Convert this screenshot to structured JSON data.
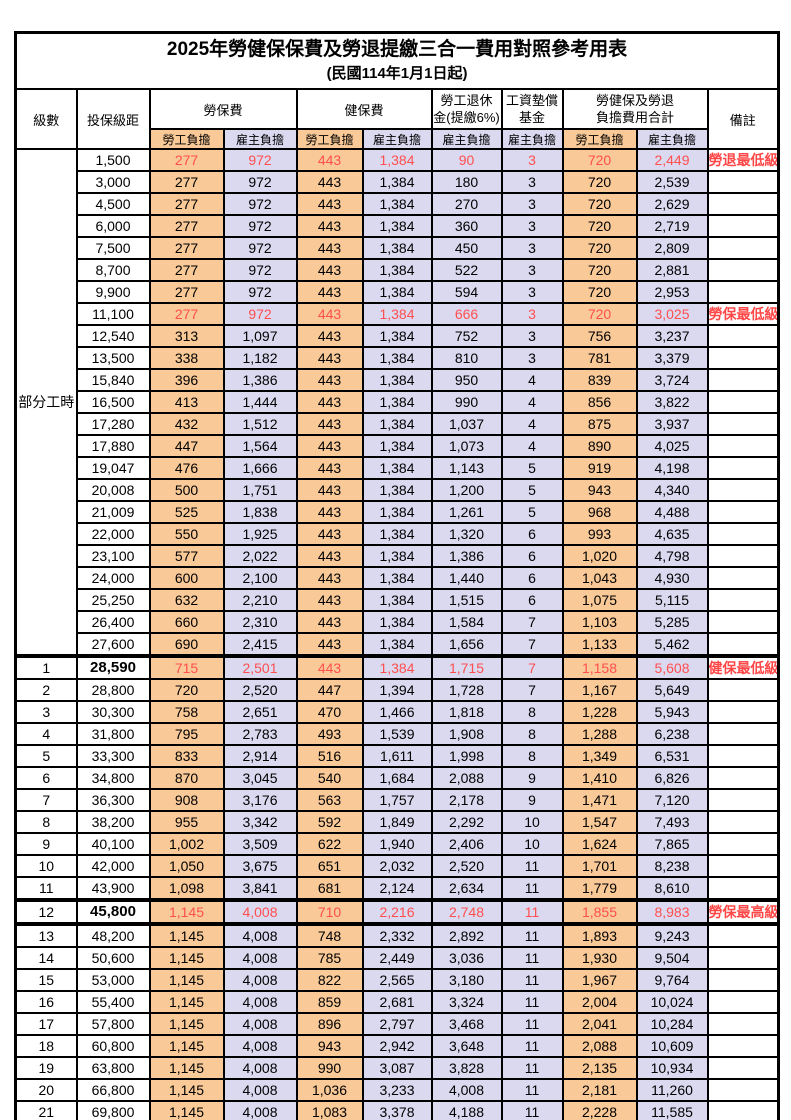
{
  "title": "2025年勞健保保費及勞退提繳三合一費用對照參考用表",
  "subtitle": "(民國114年1月1日起)",
  "colors": {
    "employee_col_bg": "#F9C997",
    "employer_col_bg": "#DBD9F0",
    "highlight_text": "#FF4F4F",
    "border": "#000000"
  },
  "header": {
    "level": "級數",
    "bracket": "投保級距",
    "labor_insurance": "勞保費",
    "health_insurance": "健保費",
    "pension_line1": "勞工退休",
    "pension_line2": "金(提繳6%)",
    "wage_fund_line1": "工資墊償",
    "wage_fund_line2": "基金",
    "total_line1": "勞健保及勞退",
    "total_line2": "負擔費用合計",
    "remark": "備註",
    "employee": "勞工負擔",
    "employer": "雇主負擔"
  },
  "part_time_label": "部分工時",
  "part_time_span": 23,
  "rows": [
    {
      "level": "",
      "bracket": "1,500",
      "values": [
        "277",
        "972",
        "443",
        "1,384",
        "90",
        "3",
        "720",
        "2,449"
      ],
      "remark": "勞退最低級距",
      "red": true,
      "bold": false,
      "thick_top": false,
      "thick_bottom": false
    },
    {
      "level": "",
      "bracket": "3,000",
      "values": [
        "277",
        "972",
        "443",
        "1,384",
        "180",
        "3",
        "720",
        "2,539"
      ],
      "remark": "",
      "red": false,
      "bold": false,
      "thick_top": false,
      "thick_bottom": false
    },
    {
      "level": "",
      "bracket": "4,500",
      "values": [
        "277",
        "972",
        "443",
        "1,384",
        "270",
        "3",
        "720",
        "2,629"
      ],
      "remark": "",
      "red": false,
      "bold": false,
      "thick_top": false,
      "thick_bottom": false
    },
    {
      "level": "",
      "bracket": "6,000",
      "values": [
        "277",
        "972",
        "443",
        "1,384",
        "360",
        "3",
        "720",
        "2,719"
      ],
      "remark": "",
      "red": false,
      "bold": false,
      "thick_top": false,
      "thick_bottom": false
    },
    {
      "level": "",
      "bracket": "7,500",
      "values": [
        "277",
        "972",
        "443",
        "1,384",
        "450",
        "3",
        "720",
        "2,809"
      ],
      "remark": "",
      "red": false,
      "bold": false,
      "thick_top": false,
      "thick_bottom": false
    },
    {
      "level": "",
      "bracket": "8,700",
      "values": [
        "277",
        "972",
        "443",
        "1,384",
        "522",
        "3",
        "720",
        "2,881"
      ],
      "remark": "",
      "red": false,
      "bold": false,
      "thick_top": false,
      "thick_bottom": false
    },
    {
      "level": "",
      "bracket": "9,900",
      "values": [
        "277",
        "972",
        "443",
        "1,384",
        "594",
        "3",
        "720",
        "2,953"
      ],
      "remark": "",
      "red": false,
      "bold": false,
      "thick_top": false,
      "thick_bottom": false
    },
    {
      "level": "",
      "bracket": "11,100",
      "values": [
        "277",
        "972",
        "443",
        "1,384",
        "666",
        "3",
        "720",
        "3,025"
      ],
      "remark": "勞保最低級距",
      "red": true,
      "bold": false,
      "thick_top": false,
      "thick_bottom": false
    },
    {
      "level": "",
      "bracket": "12,540",
      "values": [
        "313",
        "1,097",
        "443",
        "1,384",
        "752",
        "3",
        "756",
        "3,237"
      ],
      "remark": "",
      "red": false,
      "bold": false,
      "thick_top": false,
      "thick_bottom": false
    },
    {
      "level": "",
      "bracket": "13,500",
      "values": [
        "338",
        "1,182",
        "443",
        "1,384",
        "810",
        "3",
        "781",
        "3,379"
      ],
      "remark": "",
      "red": false,
      "bold": false,
      "thick_top": false,
      "thick_bottom": false
    },
    {
      "level": "",
      "bracket": "15,840",
      "values": [
        "396",
        "1,386",
        "443",
        "1,384",
        "950",
        "4",
        "839",
        "3,724"
      ],
      "remark": "",
      "red": false,
      "bold": false,
      "thick_top": false,
      "thick_bottom": false
    },
    {
      "level": "",
      "bracket": "16,500",
      "values": [
        "413",
        "1,444",
        "443",
        "1,384",
        "990",
        "4",
        "856",
        "3,822"
      ],
      "remark": "",
      "red": false,
      "bold": false,
      "thick_top": false,
      "thick_bottom": false
    },
    {
      "level": "",
      "bracket": "17,280",
      "values": [
        "432",
        "1,512",
        "443",
        "1,384",
        "1,037",
        "4",
        "875",
        "3,937"
      ],
      "remark": "",
      "red": false,
      "bold": false,
      "thick_top": false,
      "thick_bottom": false
    },
    {
      "level": "",
      "bracket": "17,880",
      "values": [
        "447",
        "1,564",
        "443",
        "1,384",
        "1,073",
        "4",
        "890",
        "4,025"
      ],
      "remark": "",
      "red": false,
      "bold": false,
      "thick_top": false,
      "thick_bottom": false
    },
    {
      "level": "",
      "bracket": "19,047",
      "values": [
        "476",
        "1,666",
        "443",
        "1,384",
        "1,143",
        "5",
        "919",
        "4,198"
      ],
      "remark": "",
      "red": false,
      "bold": false,
      "thick_top": false,
      "thick_bottom": false
    },
    {
      "level": "",
      "bracket": "20,008",
      "values": [
        "500",
        "1,751",
        "443",
        "1,384",
        "1,200",
        "5",
        "943",
        "4,340"
      ],
      "remark": "",
      "red": false,
      "bold": false,
      "thick_top": false,
      "thick_bottom": false
    },
    {
      "level": "",
      "bracket": "21,009",
      "values": [
        "525",
        "1,838",
        "443",
        "1,384",
        "1,261",
        "5",
        "968",
        "4,488"
      ],
      "remark": "",
      "red": false,
      "bold": false,
      "thick_top": false,
      "thick_bottom": false
    },
    {
      "level": "",
      "bracket": "22,000",
      "values": [
        "550",
        "1,925",
        "443",
        "1,384",
        "1,320",
        "6",
        "993",
        "4,635"
      ],
      "remark": "",
      "red": false,
      "bold": false,
      "thick_top": false,
      "thick_bottom": false
    },
    {
      "level": "",
      "bracket": "23,100",
      "values": [
        "577",
        "2,022",
        "443",
        "1,384",
        "1,386",
        "6",
        "1,020",
        "4,798"
      ],
      "remark": "",
      "red": false,
      "bold": false,
      "thick_top": false,
      "thick_bottom": false
    },
    {
      "level": "",
      "bracket": "24,000",
      "values": [
        "600",
        "2,100",
        "443",
        "1,384",
        "1,440",
        "6",
        "1,043",
        "4,930"
      ],
      "remark": "",
      "red": false,
      "bold": false,
      "thick_top": false,
      "thick_bottom": false
    },
    {
      "level": "",
      "bracket": "25,250",
      "values": [
        "632",
        "2,210",
        "443",
        "1,384",
        "1,515",
        "6",
        "1,075",
        "5,115"
      ],
      "remark": "",
      "red": false,
      "bold": false,
      "thick_top": false,
      "thick_bottom": false
    },
    {
      "level": "",
      "bracket": "26,400",
      "values": [
        "660",
        "2,310",
        "443",
        "1,384",
        "1,584",
        "7",
        "1,103",
        "5,285"
      ],
      "remark": "",
      "red": false,
      "bold": false,
      "thick_top": false,
      "thick_bottom": false
    },
    {
      "level": "",
      "bracket": "27,600",
      "values": [
        "690",
        "2,415",
        "443",
        "1,384",
        "1,656",
        "7",
        "1,133",
        "5,462"
      ],
      "remark": "",
      "red": false,
      "bold": false,
      "thick_top": false,
      "thick_bottom": false
    },
    {
      "level": "1",
      "bracket": "28,590",
      "values": [
        "715",
        "2,501",
        "443",
        "1,384",
        "1,715",
        "7",
        "1,158",
        "5,608"
      ],
      "remark": "健保最低級距",
      "red": true,
      "bold": true,
      "thick_top": true,
      "thick_bottom": false
    },
    {
      "level": "2",
      "bracket": "28,800",
      "values": [
        "720",
        "2,520",
        "447",
        "1,394",
        "1,728",
        "7",
        "1,167",
        "5,649"
      ],
      "remark": "",
      "red": false,
      "bold": false,
      "thick_top": false,
      "thick_bottom": false
    },
    {
      "level": "3",
      "bracket": "30,300",
      "values": [
        "758",
        "2,651",
        "470",
        "1,466",
        "1,818",
        "8",
        "1,228",
        "5,943"
      ],
      "remark": "",
      "red": false,
      "bold": false,
      "thick_top": false,
      "thick_bottom": false
    },
    {
      "level": "4",
      "bracket": "31,800",
      "values": [
        "795",
        "2,783",
        "493",
        "1,539",
        "1,908",
        "8",
        "1,288",
        "6,238"
      ],
      "remark": "",
      "red": false,
      "bold": false,
      "thick_top": false,
      "thick_bottom": false
    },
    {
      "level": "5",
      "bracket": "33,300",
      "values": [
        "833",
        "2,914",
        "516",
        "1,611",
        "1,998",
        "8",
        "1,349",
        "6,531"
      ],
      "remark": "",
      "red": false,
      "bold": false,
      "thick_top": false,
      "thick_bottom": false
    },
    {
      "level": "6",
      "bracket": "34,800",
      "values": [
        "870",
        "3,045",
        "540",
        "1,684",
        "2,088",
        "9",
        "1,410",
        "6,826"
      ],
      "remark": "",
      "red": false,
      "bold": false,
      "thick_top": false,
      "thick_bottom": false
    },
    {
      "level": "7",
      "bracket": "36,300",
      "values": [
        "908",
        "3,176",
        "563",
        "1,757",
        "2,178",
        "9",
        "1,471",
        "7,120"
      ],
      "remark": "",
      "red": false,
      "bold": false,
      "thick_top": false,
      "thick_bottom": false
    },
    {
      "level": "8",
      "bracket": "38,200",
      "values": [
        "955",
        "3,342",
        "592",
        "1,849",
        "2,292",
        "10",
        "1,547",
        "7,493"
      ],
      "remark": "",
      "red": false,
      "bold": false,
      "thick_top": false,
      "thick_bottom": false
    },
    {
      "level": "9",
      "bracket": "40,100",
      "values": [
        "1,002",
        "3,509",
        "622",
        "1,940",
        "2,406",
        "10",
        "1,624",
        "7,865"
      ],
      "remark": "",
      "red": false,
      "bold": false,
      "thick_top": false,
      "thick_bottom": false
    },
    {
      "level": "10",
      "bracket": "42,000",
      "values": [
        "1,050",
        "3,675",
        "651",
        "2,032",
        "2,520",
        "11",
        "1,701",
        "8,238"
      ],
      "remark": "",
      "red": false,
      "bold": false,
      "thick_top": false,
      "thick_bottom": false
    },
    {
      "level": "11",
      "bracket": "43,900",
      "values": [
        "1,098",
        "3,841",
        "681",
        "2,124",
        "2,634",
        "11",
        "1,779",
        "8,610"
      ],
      "remark": "",
      "red": false,
      "bold": false,
      "thick_top": false,
      "thick_bottom": false
    },
    {
      "level": "12",
      "bracket": "45,800",
      "values": [
        "1,145",
        "4,008",
        "710",
        "2,216",
        "2,748",
        "11",
        "1,855",
        "8,983"
      ],
      "remark": "勞保最高級距",
      "red": true,
      "bold": true,
      "thick_top": true,
      "thick_bottom": true
    },
    {
      "level": "13",
      "bracket": "48,200",
      "values": [
        "1,145",
        "4,008",
        "748",
        "2,332",
        "2,892",
        "11",
        "1,893",
        "9,243"
      ],
      "remark": "",
      "red": false,
      "bold": false,
      "thick_top": false,
      "thick_bottom": false
    },
    {
      "level": "14",
      "bracket": "50,600",
      "values": [
        "1,145",
        "4,008",
        "785",
        "2,449",
        "3,036",
        "11",
        "1,930",
        "9,504"
      ],
      "remark": "",
      "red": false,
      "bold": false,
      "thick_top": false,
      "thick_bottom": false
    },
    {
      "level": "15",
      "bracket": "53,000",
      "values": [
        "1,145",
        "4,008",
        "822",
        "2,565",
        "3,180",
        "11",
        "1,967",
        "9,764"
      ],
      "remark": "",
      "red": false,
      "bold": false,
      "thick_top": false,
      "thick_bottom": false
    },
    {
      "level": "16",
      "bracket": "55,400",
      "values": [
        "1,145",
        "4,008",
        "859",
        "2,681",
        "3,324",
        "11",
        "2,004",
        "10,024"
      ],
      "remark": "",
      "red": false,
      "bold": false,
      "thick_top": false,
      "thick_bottom": false
    },
    {
      "level": "17",
      "bracket": "57,800",
      "values": [
        "1,145",
        "4,008",
        "896",
        "2,797",
        "3,468",
        "11",
        "2,041",
        "10,284"
      ],
      "remark": "",
      "red": false,
      "bold": false,
      "thick_top": false,
      "thick_bottom": false
    },
    {
      "level": "18",
      "bracket": "60,800",
      "values": [
        "1,145",
        "4,008",
        "943",
        "2,942",
        "3,648",
        "11",
        "2,088",
        "10,609"
      ],
      "remark": "",
      "red": false,
      "bold": false,
      "thick_top": false,
      "thick_bottom": false
    },
    {
      "level": "19",
      "bracket": "63,800",
      "values": [
        "1,145",
        "4,008",
        "990",
        "3,087",
        "3,828",
        "11",
        "2,135",
        "10,934"
      ],
      "remark": "",
      "red": false,
      "bold": false,
      "thick_top": false,
      "thick_bottom": false
    },
    {
      "level": "20",
      "bracket": "66,800",
      "values": [
        "1,145",
        "4,008",
        "1,036",
        "3,233",
        "4,008",
        "11",
        "2,181",
        "11,260"
      ],
      "remark": "",
      "red": false,
      "bold": false,
      "thick_top": false,
      "thick_bottom": false
    },
    {
      "level": "21",
      "bracket": "69,800",
      "values": [
        "1,145",
        "4,008",
        "1,083",
        "3,378",
        "4,188",
        "11",
        "2,228",
        "11,585"
      ],
      "remark": "",
      "red": false,
      "bold": false,
      "thick_top": false,
      "thick_bottom": false
    }
  ]
}
